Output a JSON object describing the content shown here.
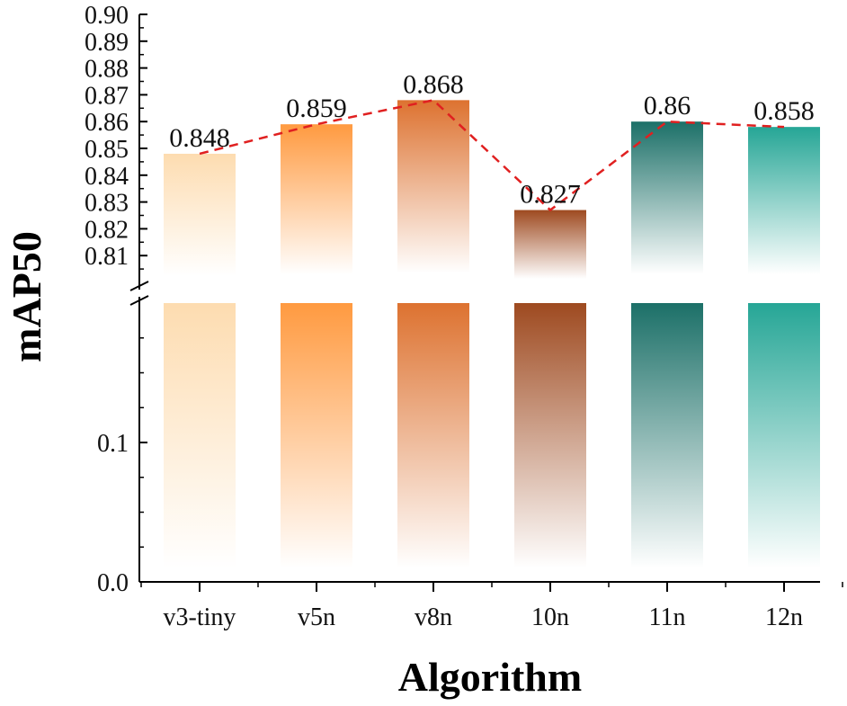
{
  "chart_data": {
    "type": "bar",
    "xlabel": "Algorithm",
    "ylabel": "mAP50",
    "categories": [
      "v3-tiny",
      "v5n",
      "v8n",
      "10n",
      "11n",
      "12n"
    ],
    "values": [
      0.848,
      0.859,
      0.868,
      0.827,
      0.86,
      0.858
    ],
    "value_labels": [
      "0.848",
      "0.859",
      "0.868",
      "0.827",
      "0.86",
      "0.858"
    ],
    "colors": [
      "#FDDCB0",
      "#FF9A40",
      "#DD7230",
      "#9E4A20",
      "#1C7068",
      "#26A696"
    ],
    "trend_line": {
      "style": "dashed",
      "color": "#E02020"
    },
    "y_axis": {
      "broken": true,
      "lower_segment": {
        "range": [
          0.0,
          0.2
        ],
        "tick_labels": [
          "0.0",
          "0.1"
        ]
      },
      "upper_segment": {
        "range": [
          0.8,
          0.9
        ],
        "tick_labels": [
          "0.81",
          "0.82",
          "0.83",
          "0.84",
          "0.85",
          "0.86",
          "0.87",
          "0.88",
          "0.89",
          "0.90"
        ]
      }
    }
  }
}
